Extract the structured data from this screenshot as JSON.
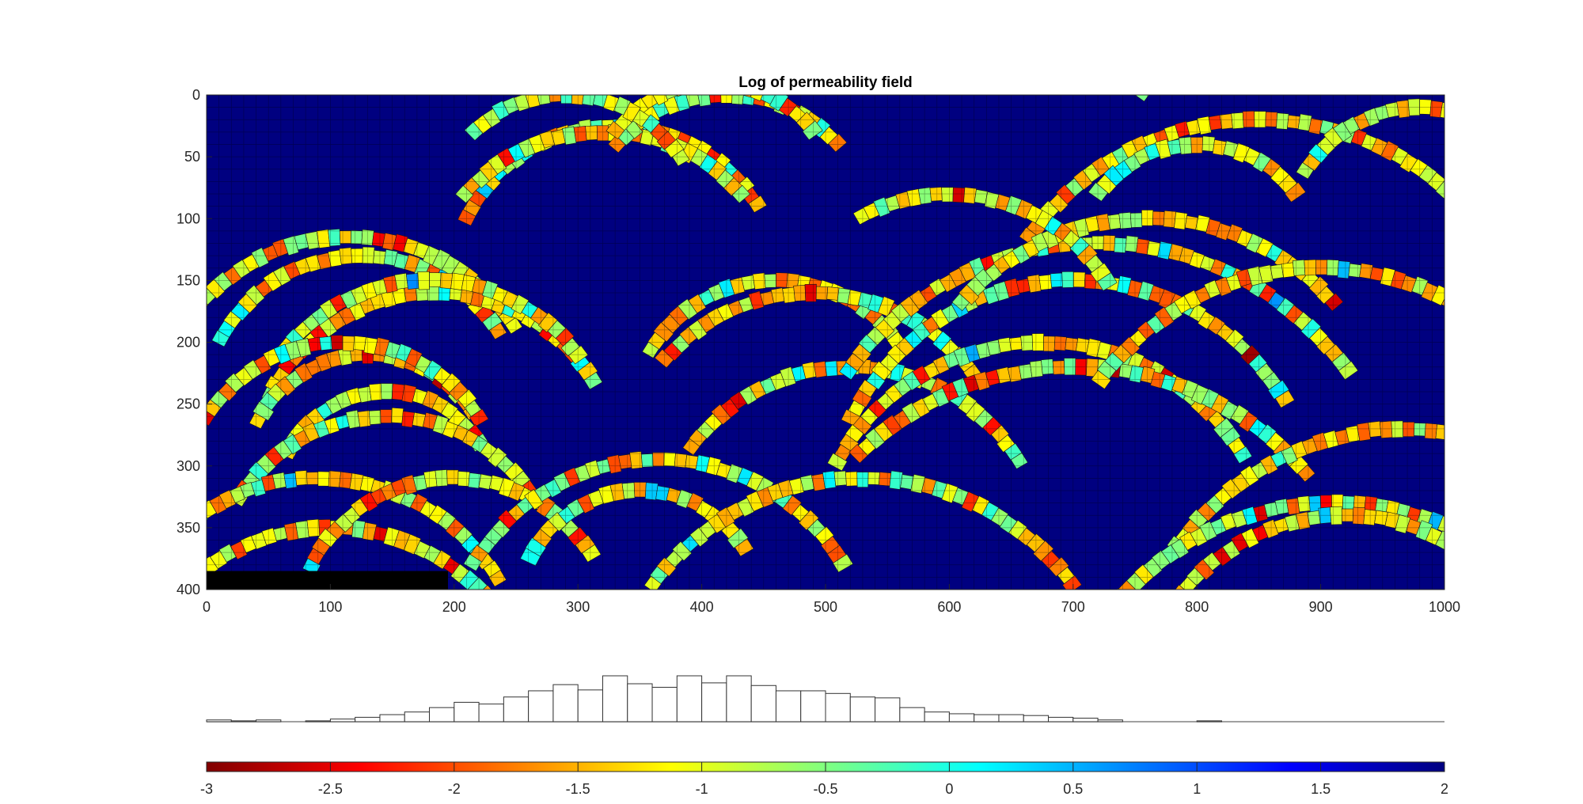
{
  "chart_data": [
    {
      "type": "heatmap",
      "title": "Log of permeability field",
      "xlabel": "",
      "ylabel": "",
      "xlim": [
        0,
        1000
      ],
      "ylim": [
        0,
        400
      ],
      "y_direction": "reversed",
      "xticks": [
        0,
        100,
        200,
        300,
        400,
        500,
        600,
        700,
        800,
        900,
        1000
      ],
      "yticks": [
        0,
        50,
        100,
        150,
        200,
        250,
        300,
        350,
        400
      ],
      "grid_cells_x": 100,
      "grid_cells_y": 40,
      "background_log_perm": 2,
      "inactive_region": {
        "x": [
          0,
          195
        ],
        "y": [
          385,
          400
        ],
        "color": "#000000"
      },
      "color_scale": {
        "min": -3,
        "max": 2,
        "colormap": "jet-reversed"
      },
      "fracture_arcs": [
        {
          "cx": 125,
          "cy": 260,
          "r": 130,
          "a0": 207,
          "a1": 330
        },
        {
          "cx": 115,
          "cy": 275,
          "r": 160,
          "a0": 210,
          "a1": 328
        },
        {
          "cx": 185,
          "cy": 310,
          "r": 150,
          "a0": 205,
          "a1": 330
        },
        {
          "cx": 180,
          "cy": 300,
          "r": 150,
          "a0": 215,
          "a1": 325
        },
        {
          "cx": 130,
          "cy": 310,
          "r": 100,
          "a0": 205,
          "a1": 330
        },
        {
          "cx": 110,
          "cy": 330,
          "r": 130,
          "a0": 210,
          "a1": 330
        },
        {
          "cx": 145,
          "cy": 330,
          "r": 90,
          "a0": 205,
          "a1": 330
        },
        {
          "cx": 145,
          "cy": 400,
          "r": 140,
          "a0": 210,
          "a1": 330
        },
        {
          "cx": 90,
          "cy": 480,
          "r": 170,
          "a0": 213,
          "a1": 330
        },
        {
          "cx": 100,
          "cy": 520,
          "r": 170,
          "a0": 212,
          "a1": 328
        },
        {
          "cx": 200,
          "cy": 440,
          "r": 130,
          "a0": 205,
          "a1": 330
        },
        {
          "cx": 330,
          "cy": 160,
          "r": 135,
          "a0": 205,
          "a1": 330
        },
        {
          "cx": 320,
          "cy": 180,
          "r": 150,
          "a0": 220,
          "a1": 320
        },
        {
          "cx": 420,
          "cy": 120,
          "r": 120,
          "a0": 220,
          "a1": 320
        },
        {
          "cx": 410,
          "cy": 90,
          "r": 100,
          "a0": 215,
          "a1": 325
        },
        {
          "cx": 365,
          "cy": 470,
          "r": 175,
          "a0": 210,
          "a1": 330
        },
        {
          "cx": 350,
          "cy": 420,
          "r": 100,
          "a0": 205,
          "a1": 330
        },
        {
          "cx": 530,
          "cy": 520,
          "r": 210,
          "a0": 215,
          "a1": 325
        },
        {
          "cx": 460,
          "cy": 270,
          "r": 120,
          "a0": 210,
          "a1": 330
        },
        {
          "cx": 490,
          "cy": 320,
          "r": 160,
          "a0": 220,
          "a1": 325
        },
        {
          "cx": 520,
          "cy": 380,
          "r": 160,
          "a0": 215,
          "a1": 330
        },
        {
          "cx": 700,
          "cy": 350,
          "r": 200,
          "a0": 205,
          "a1": 330
        },
        {
          "cx": 675,
          "cy": 390,
          "r": 190,
          "a0": 208,
          "a1": 330
        },
        {
          "cx": 700,
          "cy": 470,
          "r": 250,
          "a0": 225,
          "a1": 320
        },
        {
          "cx": 720,
          "cy": 370,
          "r": 250,
          "a0": 215,
          "a1": 325
        },
        {
          "cx": 850,
          "cy": 250,
          "r": 230,
          "a0": 215,
          "a1": 330
        },
        {
          "cx": 760,
          "cy": 300,
          "r": 200,
          "a0": 220,
          "a1": 320
        },
        {
          "cx": 950,
          "cy": 140,
          "r": 240,
          "a0": 215,
          "a1": 330
        },
        {
          "cx": 980,
          "cy": 120,
          "r": 110,
          "a0": 210,
          "a1": 330
        },
        {
          "cx": 900,
          "cy": 360,
          "r": 220,
          "a0": 215,
          "a1": 330
        },
        {
          "cx": 970,
          "cy": 500,
          "r": 230,
          "a0": 215,
          "a1": 330
        },
        {
          "cx": 910,
          "cy": 560,
          "r": 230,
          "a0": 205,
          "a1": 330
        },
        {
          "cx": 920,
          "cy": 510,
          "r": 170,
          "a0": 205,
          "a1": 330
        },
        {
          "cx": 800,
          "cy": 140,
          "r": 100,
          "a0": 215,
          "a1": 325
        },
        {
          "cx": 600,
          "cy": 230,
          "r": 150,
          "a0": 240,
          "a1": 330
        },
        {
          "cx": 290,
          "cy": 110,
          "r": 110,
          "a0": 225,
          "a1": 330
        }
      ]
    },
    {
      "type": "bar",
      "subtype": "histogram",
      "title": "",
      "xlim": [
        -3,
        2
      ],
      "bin_width": 0.1,
      "bin_start": -3,
      "values": [
        0.02,
        0.01,
        0.02,
        0,
        0.01,
        0.03,
        0.05,
        0.08,
        0.11,
        0.16,
        0.22,
        0.2,
        0.28,
        0.35,
        0.42,
        0.36,
        0.52,
        0.43,
        0.39,
        0.52,
        0.44,
        0.52,
        0.41,
        0.35,
        0.35,
        0.32,
        0.28,
        0.27,
        0.16,
        0.11,
        0.09,
        0.08,
        0.08,
        0.07,
        0.05,
        0.04,
        0.02,
        0,
        0,
        0,
        0.01,
        0,
        0,
        0,
        0,
        0,
        0,
        0,
        0,
        0
      ]
    },
    {
      "type": "colorbar",
      "colormap": "jet-reversed",
      "min": -3,
      "max": 2,
      "ticks": [
        "-3",
        "-2.5",
        "-2",
        "-1.5",
        "-1",
        "-0.5",
        "0",
        "0.5",
        "1",
        "1.5",
        "2"
      ]
    }
  ]
}
